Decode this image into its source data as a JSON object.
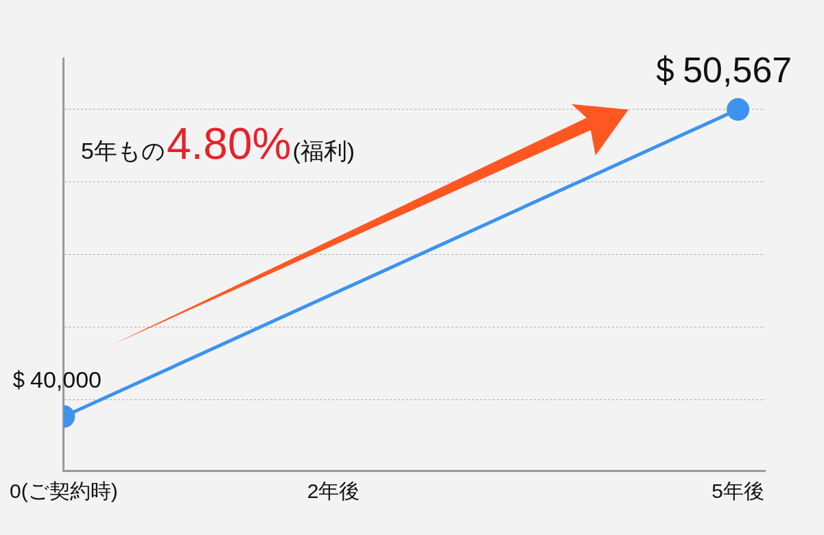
{
  "chart_data": {
    "type": "line",
    "x": [
      0,
      5
    ],
    "series": [
      {
        "color": "#3d93ee",
        "values": [
          40000,
          50567
        ],
        "value_labels": [
          "＄40,000",
          "＄50,567"
        ]
      }
    ],
    "xlim": [
      0,
      5.2
    ],
    "xticks": [
      {
        "value": 0,
        "label": "0(ご契約時)"
      },
      {
        "value": 2,
        "label": "2年後"
      },
      {
        "value": 5,
        "label": "5年後"
      }
    ],
    "ylim": [
      38140,
      52330
    ],
    "yticks": [
      {
        "value": 40590,
        "label": null
      },
      {
        "value": 43080,
        "label": null
      },
      {
        "value": 45580,
        "label": null
      },
      {
        "value": 48070,
        "label": null
      },
      {
        "value": 50567,
        "label": null
      }
    ],
    "tick_labels": "x",
    "grid": "y",
    "marker": "circle",
    "line_style": "solid",
    "legend": false,
    "annotations": [
      "5年もの",
      "4.80%",
      "(福利)"
    ]
  }
}
